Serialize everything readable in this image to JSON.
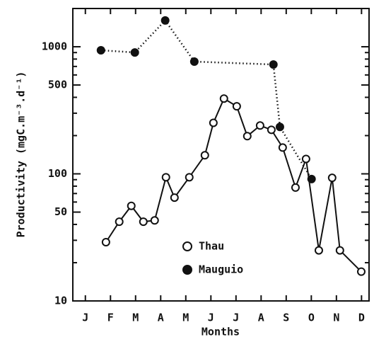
{
  "chart_data": {
    "type": "line",
    "x_label": "Months",
    "y_label": "Productivity (mgC.m⁻³.d⁻¹)",
    "log_y": true,
    "xlim": [
      0.5,
      12.3
    ],
    "xticks": [
      {
        "value": 1,
        "label": "J"
      },
      {
        "value": 2,
        "label": "F"
      },
      {
        "value": 3,
        "label": "M"
      },
      {
        "value": 4,
        "label": "A"
      },
      {
        "value": 5,
        "label": "M"
      },
      {
        "value": 6,
        "label": "J"
      },
      {
        "value": 7,
        "label": "J"
      },
      {
        "value": 8,
        "label": "A"
      },
      {
        "value": 9,
        "label": "S"
      },
      {
        "value": 10,
        "label": "O"
      },
      {
        "value": 11,
        "label": "N"
      },
      {
        "value": 12,
        "label": "D"
      }
    ],
    "ylim": [
      10,
      2000
    ],
    "yticks": [
      10,
      50,
      100,
      500,
      1000
    ],
    "yticks_minor": [
      20,
      30,
      40,
      60,
      70,
      80,
      90,
      200,
      300,
      400,
      600,
      700,
      800,
      900
    ],
    "legend": "lower center",
    "series": [
      {
        "name": "Thau",
        "color": "#111",
        "marker": "open",
        "style": "solid",
        "x": [
          1.82,
          2.35,
          2.83,
          3.31,
          3.76,
          4.21,
          4.55,
          5.14,
          5.76,
          6.1,
          6.52,
          7.03,
          7.45,
          7.96,
          8.41,
          8.86,
          9.37,
          9.79,
          10.3,
          10.83,
          11.14,
          11.99
        ],
        "values": [
          29,
          42,
          56,
          42,
          43,
          94,
          65,
          94,
          140,
          252,
          391,
          340,
          198,
          240,
          222,
          161,
          78,
          131,
          25,
          93,
          25,
          17
        ]
      },
      {
        "name": "Mauguio",
        "color": "#111",
        "marker": "filled",
        "style": "dotted",
        "x": [
          1.62,
          2.97,
          4.18,
          5.34,
          8.49,
          8.75,
          10.01
        ],
        "values": [
          938,
          902,
          1610,
          764,
          725,
          234,
          91
        ]
      }
    ]
  }
}
